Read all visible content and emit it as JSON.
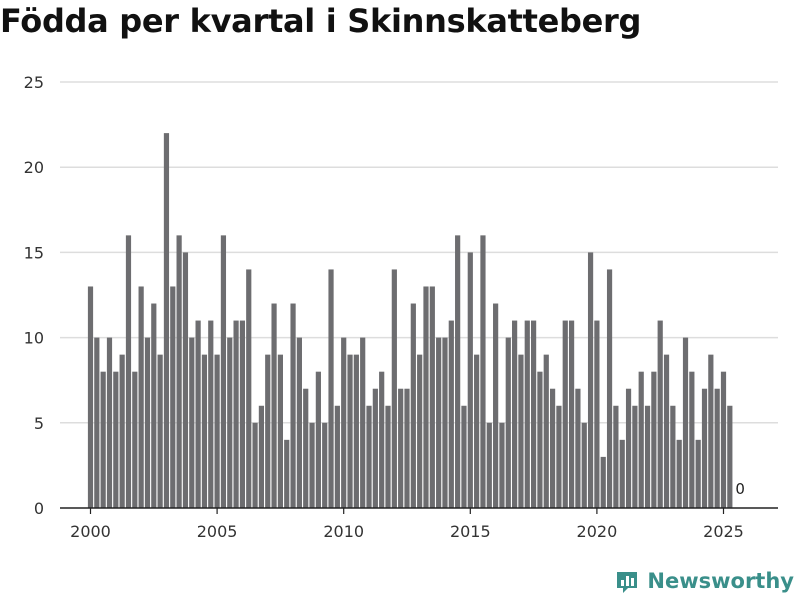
{
  "chart_data": {
    "type": "bar",
    "title": "Födda per kvartal i Skinnskatteberg",
    "xlabel": "",
    "ylabel": "",
    "ylim": [
      0,
      25
    ],
    "yticks": [
      "0",
      "5",
      "10",
      "15",
      "20",
      "25"
    ],
    "xticks": [
      "2000",
      "2005",
      "2010",
      "2015",
      "2020",
      "2025"
    ],
    "x_start_year": 2000,
    "bar_color": "#6d6d70",
    "grid": true,
    "values": [
      13,
      10,
      8,
      10,
      8,
      9,
      16,
      8,
      13,
      10,
      12,
      9,
      22,
      13,
      16,
      15,
      10,
      11,
      9,
      11,
      9,
      16,
      10,
      11,
      11,
      14,
      5,
      6,
      9,
      12,
      9,
      4,
      12,
      10,
      7,
      5,
      8,
      5,
      14,
      6,
      10,
      9,
      9,
      10,
      6,
      7,
      8,
      6,
      14,
      7,
      7,
      12,
      9,
      13,
      13,
      10,
      10,
      11,
      16,
      6,
      15,
      9,
      16,
      5,
      12,
      5,
      10,
      11,
      9,
      11,
      11,
      8,
      9,
      7,
      6,
      11,
      11,
      7,
      5,
      15,
      11,
      3,
      14,
      6,
      4,
      7,
      6,
      8,
      6,
      8,
      11,
      9,
      6,
      4,
      10,
      8,
      4,
      7,
      9,
      7,
      8,
      6,
      0
    ],
    "annotation": {
      "label": "0",
      "index": 102
    }
  },
  "brand": {
    "name": "Newsworthy",
    "color": "#3a8f8a"
  }
}
